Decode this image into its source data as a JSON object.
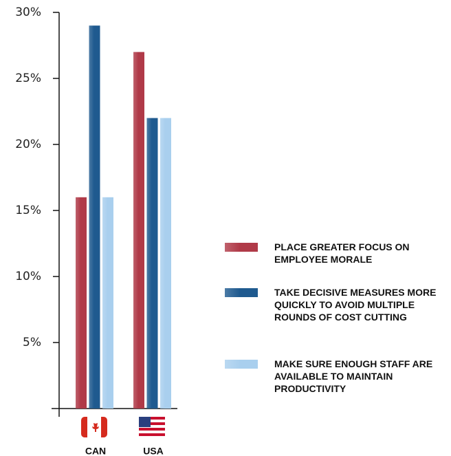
{
  "chart_data": {
    "type": "bar",
    "categories": [
      "CAN",
      "USA"
    ],
    "series": [
      {
        "name": "PLACE GREATER FOCUS ON EMPLOYEE MORALE",
        "color": "#b03a48",
        "values": [
          16,
          27
        ]
      },
      {
        "name": "TAKE DECISIVE MEASURES MORE QUICKLY TO AVOID MULTIPLE ROUNDS OF COST CUTTING",
        "color": "#1f5a8f",
        "values": [
          29,
          22
        ]
      },
      {
        "name": "MAKE SURE ENOUGH STAFF ARE AVAILABLE TO MAINTAIN PRODUCTIVITY",
        "color": "#a9cfee",
        "values": [
          16,
          22
        ]
      }
    ],
    "ylim": [
      0,
      30
    ],
    "yticks": [
      {
        "value": 5,
        "label": "5%"
      },
      {
        "value": 10,
        "label": "10%"
      },
      {
        "value": 15,
        "label": "15%"
      },
      {
        "value": 20,
        "label": "20%"
      },
      {
        "value": 25,
        "label": "25%"
      },
      {
        "value": 30,
        "label": "30%"
      }
    ],
    "legend": "right"
  }
}
